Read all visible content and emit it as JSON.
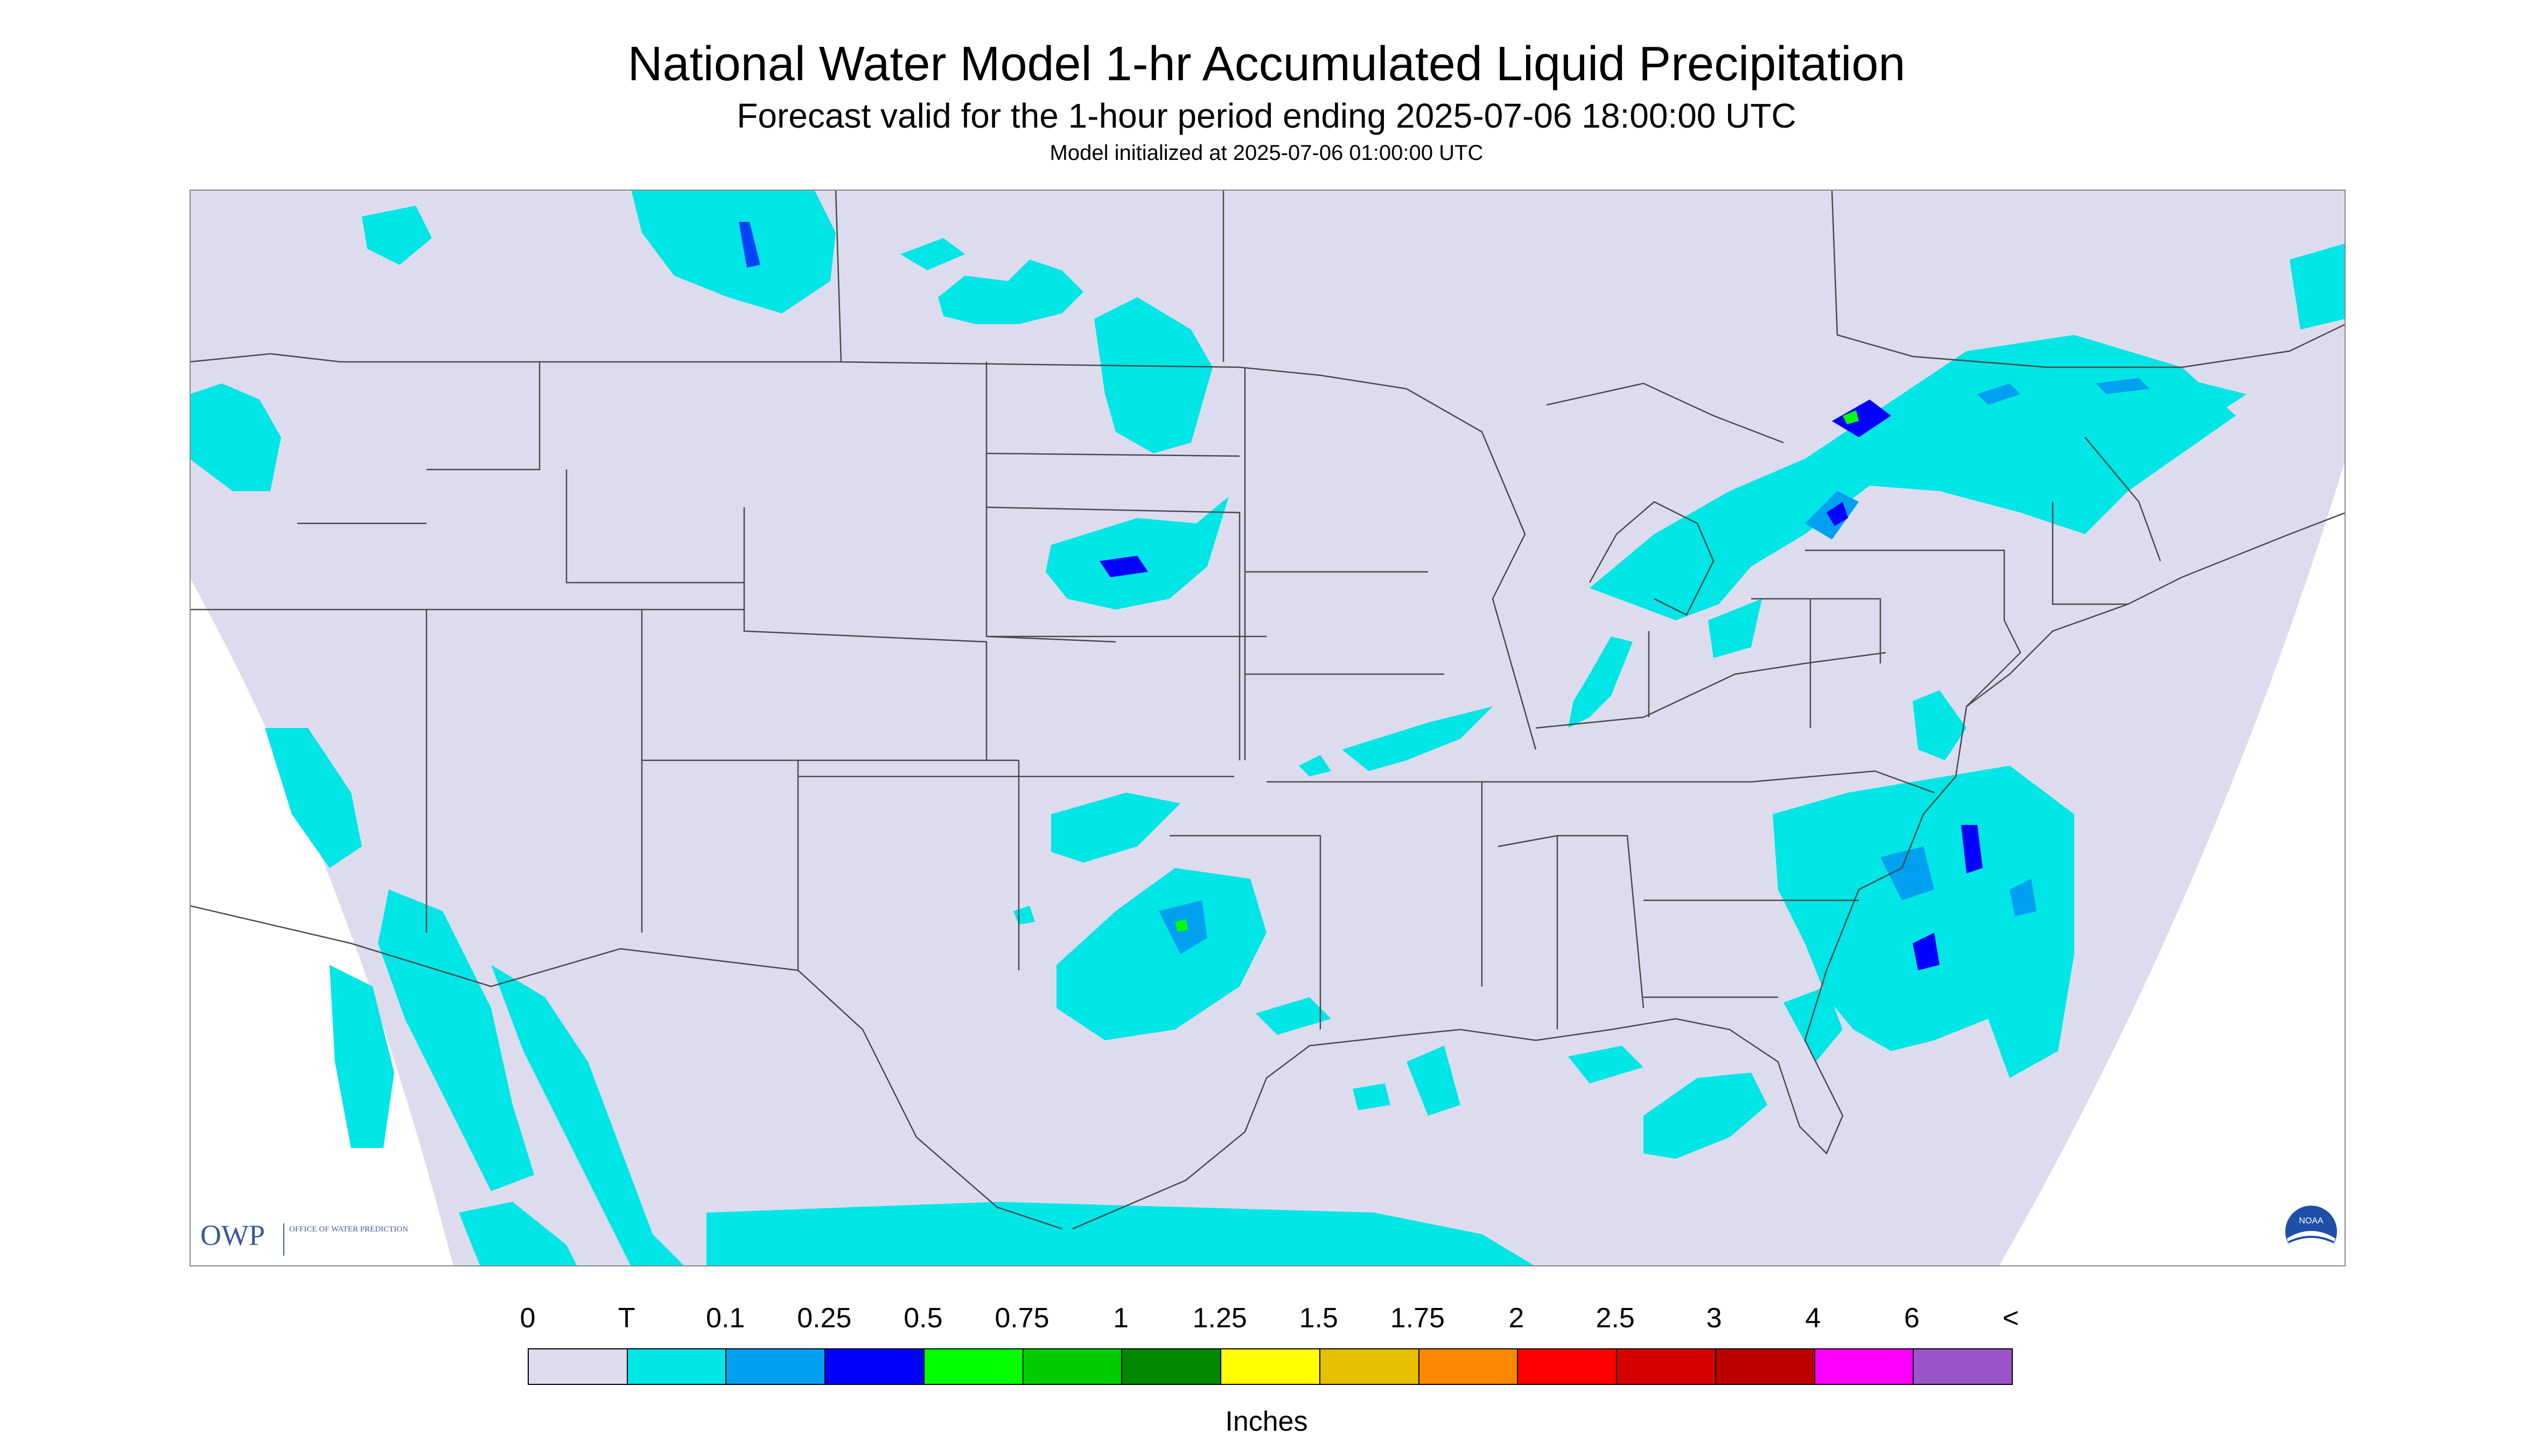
{
  "title": "National Water Model 1-hr Accumulated Liquid Precipitation",
  "subtitle": "Forecast valid for the 1-hour period ending 2025-07-06 18:00:00 UTC",
  "init_text": "Model initialized at 2025-07-06 01:00:00 UTC",
  "logo": {
    "owp_letters": "OWP",
    "owp_text": "OFFICE OF WATER PREDICTION",
    "noaa_text": "NOAA"
  },
  "colors": {
    "background": "#dcdcee",
    "trace": "#00e5e5",
    "p01": "#00a0f0",
    "p025": "#0000ff",
    "p05": "#00ff00",
    "map_lines": "#4a4a4a"
  },
  "legend": {
    "labels": [
      "0",
      "T",
      "0.1",
      "0.25",
      "0.5",
      "0.75",
      "1",
      "1.25",
      "1.5",
      "1.75",
      "2",
      "2.5",
      "3",
      "4",
      "6",
      "<"
    ],
    "colors": [
      "#dcdcee",
      "#00e5e5",
      "#00a0f0",
      "#0000ff",
      "#00ff00",
      "#00cc00",
      "#008800",
      "#ffff00",
      "#e5c000",
      "#ff8800",
      "#ff0000",
      "#d50000",
      "#bb0000",
      "#ff00ff",
      "#9955c8"
    ],
    "units": "Inches"
  }
}
